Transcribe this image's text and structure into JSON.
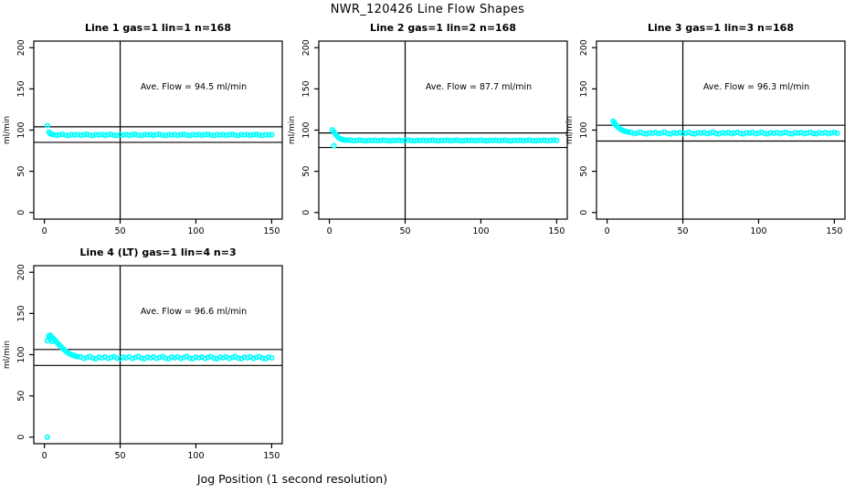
{
  "page": {
    "title": "NWR_120426  Line Flow Shapes",
    "xlabel": "Jog Position (1 second resolution)"
  },
  "style": {
    "point_color": "#00FFFF",
    "line_color": "#000000",
    "background": "#FFFFFF"
  },
  "chart_data": [
    {
      "type": "scatter",
      "title": "Line 1 gas=1 lin=1 n=168",
      "ylabel": "ml/min",
      "annotation": "Ave. Flow =  94.5  ml/min",
      "ave_flow": 94.5,
      "n": 168,
      "ref_lines": [
        104.0,
        85.1
      ],
      "vline_x": 50,
      "x_ticks": [
        0,
        50,
        100,
        150
      ],
      "y_ticks": [
        0,
        50,
        100,
        150,
        200
      ],
      "xlim": [
        0,
        150
      ],
      "ylim": [
        0,
        200
      ],
      "points": [
        [
          2,
          105.5
        ],
        [
          3,
          97.5
        ],
        [
          4,
          95.5
        ],
        [
          5,
          94.8
        ],
        [
          6,
          94.6
        ],
        [
          8,
          93.7
        ],
        [
          10,
          94.3
        ],
        [
          12,
          94.8
        ],
        [
          14,
          93.9
        ],
        [
          16,
          93.5
        ],
        [
          18,
          94.5
        ],
        [
          20,
          94.1
        ],
        [
          22,
          94.6
        ],
        [
          24,
          93.7
        ],
        [
          26,
          94.3
        ],
        [
          28,
          94.8
        ],
        [
          30,
          93.9
        ],
        [
          32,
          93.5
        ],
        [
          34,
          94.5
        ],
        [
          36,
          94.1
        ],
        [
          38,
          94.6
        ],
        [
          40,
          93.7
        ],
        [
          42,
          94.3
        ],
        [
          44,
          94.8
        ],
        [
          46,
          93.9
        ],
        [
          48,
          93.5
        ],
        [
          50,
          94.5
        ],
        [
          52,
          94.1
        ],
        [
          54,
          94.6
        ],
        [
          56,
          93.7
        ],
        [
          58,
          94.3
        ],
        [
          60,
          94.8
        ],
        [
          62,
          93.9
        ],
        [
          64,
          93.5
        ],
        [
          66,
          94.5
        ],
        [
          68,
          94.1
        ],
        [
          70,
          94.6
        ],
        [
          72,
          93.7
        ],
        [
          74,
          94.3
        ],
        [
          76,
          94.8
        ],
        [
          78,
          93.9
        ],
        [
          80,
          93.5
        ],
        [
          82,
          94.5
        ],
        [
          84,
          94.1
        ],
        [
          86,
          94.6
        ],
        [
          88,
          93.7
        ],
        [
          90,
          94.3
        ],
        [
          92,
          94.8
        ],
        [
          94,
          93.9
        ],
        [
          96,
          93.5
        ],
        [
          98,
          94.5
        ],
        [
          100,
          94.1
        ],
        [
          102,
          94.6
        ],
        [
          104,
          93.7
        ],
        [
          106,
          94.3
        ],
        [
          108,
          94.8
        ],
        [
          110,
          93.9
        ],
        [
          112,
          93.5
        ],
        [
          114,
          94.5
        ],
        [
          116,
          94.1
        ],
        [
          118,
          94.6
        ],
        [
          120,
          93.7
        ],
        [
          122,
          94.3
        ],
        [
          124,
          94.8
        ],
        [
          126,
          93.9
        ],
        [
          128,
          93.5
        ],
        [
          130,
          94.5
        ],
        [
          132,
          94.1
        ],
        [
          134,
          94.6
        ],
        [
          136,
          93.7
        ],
        [
          138,
          94.3
        ],
        [
          140,
          94.8
        ],
        [
          142,
          93.9
        ],
        [
          144,
          93.5
        ],
        [
          146,
          94.5
        ],
        [
          148,
          94.1
        ],
        [
          150,
          94.3
        ]
      ]
    },
    {
      "type": "scatter",
      "title": "Line 2 gas=1 lin=2 n=168",
      "ylabel": "ml/min",
      "annotation": "Ave. Flow =  87.7  ml/min",
      "ave_flow": 87.7,
      "n": 168,
      "ref_lines": [
        96.5,
        78.9
      ],
      "vline_x": 50,
      "x_ticks": [
        0,
        50,
        100,
        150
      ],
      "y_ticks": [
        0,
        50,
        100,
        150,
        200
      ],
      "xlim": [
        0,
        150
      ],
      "ylim": [
        0,
        200
      ],
      "points": [
        [
          2,
          100.3
        ],
        [
          3,
          97.8
        ],
        [
          3,
          81
        ],
        [
          4,
          95
        ],
        [
          5,
          92.8
        ],
        [
          6,
          91
        ],
        [
          7,
          89.8
        ],
        [
          8,
          88.9
        ],
        [
          9,
          88.3
        ],
        [
          10,
          88
        ],
        [
          11,
          87.8
        ],
        [
          12,
          87.7
        ],
        [
          14,
          87.7
        ],
        [
          16,
          87
        ],
        [
          18,
          87.5
        ],
        [
          20,
          87.9
        ],
        [
          22,
          87.2
        ],
        [
          24,
          86.9
        ],
        [
          26,
          87.6
        ],
        [
          28,
          87.4
        ],
        [
          30,
          87.7
        ],
        [
          32,
          87
        ],
        [
          34,
          87.5
        ],
        [
          36,
          87.9
        ],
        [
          38,
          87.2
        ],
        [
          40,
          86.9
        ],
        [
          42,
          87.6
        ],
        [
          44,
          87.4
        ],
        [
          46,
          87.7
        ],
        [
          48,
          87
        ],
        [
          50,
          87.5
        ],
        [
          52,
          87.9
        ],
        [
          54,
          87.2
        ],
        [
          56,
          86.9
        ],
        [
          58,
          87.6
        ],
        [
          60,
          87.4
        ],
        [
          62,
          87.7
        ],
        [
          64,
          87
        ],
        [
          66,
          87.5
        ],
        [
          68,
          87.9
        ],
        [
          70,
          87.2
        ],
        [
          72,
          86.9
        ],
        [
          74,
          87.6
        ],
        [
          76,
          87.4
        ],
        [
          78,
          87.7
        ],
        [
          80,
          87
        ],
        [
          82,
          87.5
        ],
        [
          84,
          87.9
        ],
        [
          86,
          87.2
        ],
        [
          88,
          86.9
        ],
        [
          90,
          87.6
        ],
        [
          92,
          87.4
        ],
        [
          94,
          87.7
        ],
        [
          96,
          87
        ],
        [
          98,
          87.5
        ],
        [
          100,
          87.9
        ],
        [
          102,
          87.2
        ],
        [
          104,
          86.9
        ],
        [
          106,
          87.6
        ],
        [
          108,
          87.4
        ],
        [
          110,
          87.7
        ],
        [
          112,
          87
        ],
        [
          114,
          87.5
        ],
        [
          116,
          87.9
        ],
        [
          118,
          87.2
        ],
        [
          120,
          86.9
        ],
        [
          122,
          87.6
        ],
        [
          124,
          87.4
        ],
        [
          126,
          87.7
        ],
        [
          128,
          87
        ],
        [
          130,
          87.5
        ],
        [
          132,
          87.9
        ],
        [
          134,
          87.2
        ],
        [
          136,
          86.9
        ],
        [
          138,
          87.6
        ],
        [
          140,
          87.4
        ],
        [
          142,
          87.7
        ],
        [
          144,
          87
        ],
        [
          146,
          87.5
        ],
        [
          148,
          87.9
        ],
        [
          150,
          87.4
        ]
      ]
    },
    {
      "type": "scatter",
      "title": "Line 3 gas=1 lin=3 n=168",
      "ylabel": "ml/min",
      "annotation": "Ave. Flow =  96.3  ml/min",
      "ave_flow": 96.3,
      "n": 168,
      "ref_lines": [
        105.9,
        86.7
      ],
      "vline_x": 50,
      "x_ticks": [
        0,
        50,
        100,
        150
      ],
      "y_ticks": [
        0,
        50,
        100,
        150,
        200
      ],
      "xlim": [
        0,
        150
      ],
      "ylim": [
        0,
        200
      ],
      "points": [
        [
          4,
          110.8
        ],
        [
          5,
          109
        ],
        [
          5,
          107
        ],
        [
          6,
          105.5
        ],
        [
          7,
          103.8
        ],
        [
          8,
          102.3
        ],
        [
          9,
          101
        ],
        [
          10,
          100
        ],
        [
          11,
          99.2
        ],
        [
          12,
          98.5
        ],
        [
          13,
          98
        ],
        [
          14,
          97.6
        ],
        [
          16,
          97
        ],
        [
          18,
          95.7
        ],
        [
          20,
          96.5
        ],
        [
          22,
          97.3
        ],
        [
          24,
          95.9
        ],
        [
          26,
          95.4
        ],
        [
          28,
          96.8
        ],
        [
          30,
          96.2
        ],
        [
          32,
          97
        ],
        [
          34,
          95.7
        ],
        [
          36,
          96.5
        ],
        [
          38,
          97.3
        ],
        [
          40,
          95.9
        ],
        [
          42,
          95.4
        ],
        [
          44,
          96.8
        ],
        [
          46,
          96.2
        ],
        [
          48,
          97
        ],
        [
          50,
          95.7
        ],
        [
          52,
          96.5
        ],
        [
          54,
          97.3
        ],
        [
          56,
          95.9
        ],
        [
          58,
          95.4
        ],
        [
          60,
          96.8
        ],
        [
          62,
          96.2
        ],
        [
          64,
          97
        ],
        [
          66,
          95.7
        ],
        [
          68,
          96.5
        ],
        [
          70,
          97.3
        ],
        [
          72,
          95.9
        ],
        [
          74,
          95.4
        ],
        [
          76,
          96.8
        ],
        [
          78,
          96.2
        ],
        [
          80,
          97
        ],
        [
          82,
          95.7
        ],
        [
          84,
          96.5
        ],
        [
          86,
          97.3
        ],
        [
          88,
          95.9
        ],
        [
          90,
          95.4
        ],
        [
          92,
          96.8
        ],
        [
          94,
          96.2
        ],
        [
          96,
          97
        ],
        [
          98,
          95.7
        ],
        [
          100,
          96.5
        ],
        [
          102,
          97.3
        ],
        [
          104,
          95.9
        ],
        [
          106,
          95.4
        ],
        [
          108,
          96.8
        ],
        [
          110,
          96.2
        ],
        [
          112,
          97
        ],
        [
          114,
          95.7
        ],
        [
          116,
          96.5
        ],
        [
          118,
          97.3
        ],
        [
          120,
          95.9
        ],
        [
          122,
          95.4
        ],
        [
          124,
          96.8
        ],
        [
          126,
          96.2
        ],
        [
          128,
          97
        ],
        [
          130,
          95.7
        ],
        [
          132,
          96.5
        ],
        [
          134,
          97.3
        ],
        [
          136,
          95.9
        ],
        [
          138,
          95.4
        ],
        [
          140,
          96.8
        ],
        [
          142,
          96.2
        ],
        [
          144,
          97
        ],
        [
          146,
          95.7
        ],
        [
          148,
          96.5
        ],
        [
          150,
          97.3
        ],
        [
          152,
          96.2
        ]
      ]
    },
    {
      "type": "scatter",
      "title": "Line 4 (LT) gas=1 lin=4 n=3",
      "ylabel": "ml/min",
      "annotation": "Ave. Flow =  96.6  ml/min",
      "ave_flow": 96.6,
      "n": 3,
      "ref_lines": [
        106.3,
        86.9
      ],
      "vline_x": 50,
      "x_ticks": [
        0,
        50,
        100,
        150
      ],
      "y_ticks": [
        0,
        50,
        100,
        150,
        200
      ],
      "xlim": [
        0,
        150
      ],
      "ylim": [
        0,
        200
      ],
      "points": [
        [
          2,
          0
        ],
        [
          2,
          117
        ],
        [
          3,
          121.5
        ],
        [
          3,
          123
        ],
        [
          4,
          123.5
        ],
        [
          4,
          119
        ],
        [
          5,
          121
        ],
        [
          5,
          116
        ],
        [
          6,
          119.5
        ],
        [
          7,
          117.5
        ],
        [
          8,
          115.5
        ],
        [
          9,
          113.5
        ],
        [
          10,
          111.5
        ],
        [
          11,
          109.5
        ],
        [
          12,
          107.5
        ],
        [
          13,
          106
        ],
        [
          14,
          104.5
        ],
        [
          15,
          103
        ],
        [
          16,
          101.8
        ],
        [
          17,
          100.8
        ],
        [
          18,
          100
        ],
        [
          19,
          99.2
        ],
        [
          20,
          98.6
        ],
        [
          21,
          98.1
        ],
        [
          22,
          97.7
        ],
        [
          24,
          97.3
        ],
        [
          26,
          95.5
        ],
        [
          28,
          96.6
        ],
        [
          30,
          97.7
        ],
        [
          32,
          95.8
        ],
        [
          34,
          95.1
        ],
        [
          36,
          97
        ],
        [
          38,
          96.1
        ],
        [
          40,
          97.3
        ],
        [
          42,
          95.5
        ],
        [
          44,
          96.6
        ],
        [
          46,
          97.7
        ],
        [
          48,
          95.8
        ],
        [
          50,
          95.1
        ],
        [
          52,
          97
        ],
        [
          54,
          96.1
        ],
        [
          56,
          97.3
        ],
        [
          58,
          95.5
        ],
        [
          60,
          96.6
        ],
        [
          62,
          97.7
        ],
        [
          64,
          95.8
        ],
        [
          66,
          95.1
        ],
        [
          68,
          97
        ],
        [
          70,
          96.1
        ],
        [
          72,
          97.3
        ],
        [
          74,
          95.5
        ],
        [
          76,
          96.6
        ],
        [
          78,
          97.7
        ],
        [
          80,
          95.8
        ],
        [
          82,
          95.1
        ],
        [
          84,
          97
        ],
        [
          86,
          96.1
        ],
        [
          88,
          97.3
        ],
        [
          90,
          95.5
        ],
        [
          92,
          96.6
        ],
        [
          94,
          97.7
        ],
        [
          96,
          95.8
        ],
        [
          98,
          95.1
        ],
        [
          100,
          97
        ],
        [
          102,
          96.1
        ],
        [
          104,
          97.3
        ],
        [
          106,
          95.5
        ],
        [
          108,
          96.6
        ],
        [
          110,
          97.7
        ],
        [
          112,
          95.8
        ],
        [
          114,
          95.1
        ],
        [
          116,
          97
        ],
        [
          118,
          96.1
        ],
        [
          120,
          97.3
        ],
        [
          122,
          95.5
        ],
        [
          124,
          96.6
        ],
        [
          126,
          97.7
        ],
        [
          128,
          95.8
        ],
        [
          130,
          95.1
        ],
        [
          132,
          97
        ],
        [
          134,
          96.1
        ],
        [
          136,
          97.3
        ],
        [
          138,
          95.5
        ],
        [
          140,
          96.6
        ],
        [
          142,
          97.7
        ],
        [
          144,
          95.8
        ],
        [
          146,
          95.1
        ],
        [
          148,
          97
        ],
        [
          150,
          96.1
        ]
      ]
    }
  ]
}
